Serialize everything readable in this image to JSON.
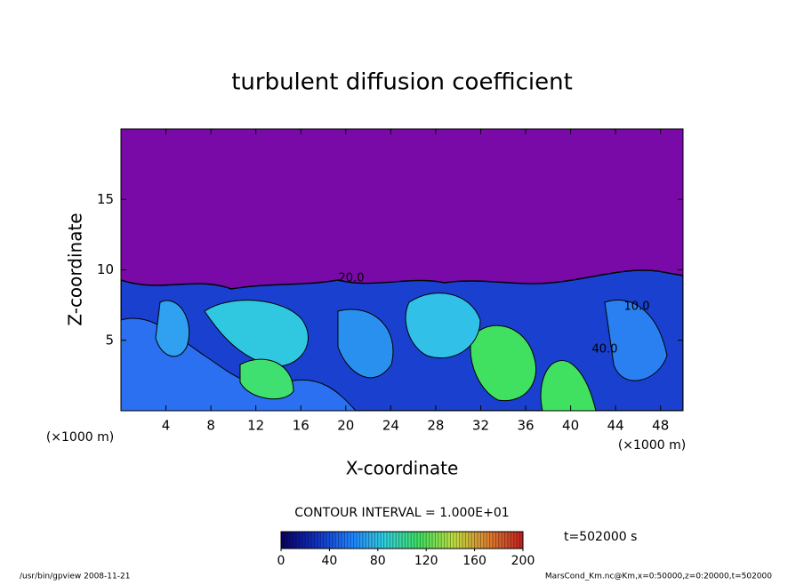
{
  "chart_data": {
    "type": "contour",
    "title": "turbulent diffusion coefficient",
    "xlabel": "X-coordinate",
    "ylabel": "Z-coordinate",
    "xunit": "(×1000 m)",
    "yunit": "(×1000 m)",
    "xlim": [
      0,
      50
    ],
    "xticks": [
      4,
      8,
      12,
      16,
      20,
      24,
      28,
      32,
      36,
      40,
      44,
      48
    ],
    "ylim": [
      0,
      20
    ],
    "yticks": [
      5,
      10,
      15
    ],
    "contour_interval": "CONTOUR INTERVAL = 1.000E+01",
    "time_label": "t=502000 s",
    "contour_labels": [
      "20.0",
      "40.0",
      "10.0"
    ],
    "colorbar": {
      "lim": [
        0,
        200
      ],
      "ticks": [
        0,
        40,
        80,
        120,
        160,
        200
      ],
      "colors": [
        "#0a0060",
        "#1030c0",
        "#2080ff",
        "#30d0e0",
        "#40e060",
        "#c0e040",
        "#e08030",
        "#c02020"
      ]
    },
    "footer_left": "/usr/bin/gpview   2008-11-21",
    "footer_right": "MarsCond_Km.nc@Km,x=0:50000,z=0:20000,t=502000"
  }
}
